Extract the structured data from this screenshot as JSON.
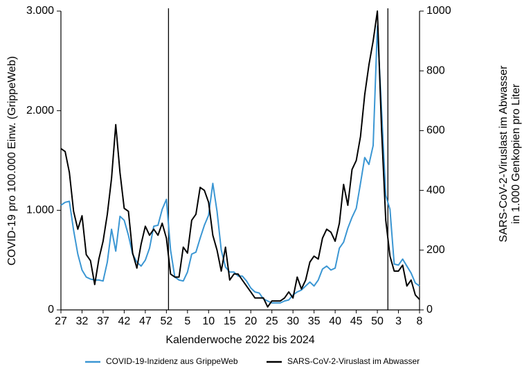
{
  "chart_data": {
    "type": "line",
    "x_label": "Kalenderwoche 2022 bis 2024",
    "y_label": "COVID-19 pro 100.000 Einw. (GrippeWeb)",
    "y2_label": [
      "SARS-CoV-2-Viruslast im Abwasser",
      "in 1.000 Genkopien pro Liter"
    ],
    "categories": [
      "27",
      null,
      null,
      null,
      null,
      "32",
      null,
      null,
      null,
      null,
      "37",
      null,
      null,
      null,
      null,
      "42",
      null,
      null,
      null,
      null,
      "47",
      null,
      null,
      null,
      null,
      "52",
      null,
      null,
      null,
      null,
      "5",
      null,
      null,
      null,
      null,
      "10",
      null,
      null,
      null,
      null,
      "15",
      null,
      null,
      null,
      null,
      "20",
      null,
      null,
      null,
      null,
      "25",
      null,
      null,
      null,
      null,
      "30",
      null,
      null,
      null,
      null,
      "35",
      null,
      null,
      null,
      null,
      "40",
      null,
      null,
      null,
      null,
      "45",
      null,
      null,
      null,
      null,
      "50",
      null,
      null,
      null,
      null,
      "3",
      null,
      null,
      null,
      null,
      "8"
    ],
    "ylim": [
      0,
      3000
    ],
    "yticks": [
      0,
      {
        "value": 1000,
        "label": "1.000"
      },
      {
        "value": 2000,
        "label": "2.000"
      },
      {
        "value": 3000,
        "label": "3.000"
      }
    ],
    "y2lim": [
      0,
      1000
    ],
    "y2ticks": [
      0,
      200,
      400,
      600,
      800,
      1000
    ],
    "legend": "bottom",
    "series": [
      {
        "name": "COVID-19-Inzidenz aus GrippeWeb",
        "color": "#3a96d3",
        "values": [
          1050,
          1080,
          1090,
          800,
          560,
          400,
          330,
          310,
          300,
          300,
          290,
          480,
          810,
          590,
          940,
          900,
          750,
          560,
          480,
          440,
          500,
          620,
          840,
          850,
          1010,
          1110,
          600,
          330,
          300,
          290,
          380,
          560,
          580,
          720,
          850,
          950,
          1270,
          990,
          600,
          430,
          380,
          380,
          340,
          340,
          290,
          220,
          180,
          170,
          110,
          90,
          70,
          70,
          70,
          90,
          100,
          150,
          180,
          200,
          240,
          280,
          240,
          300,
          410,
          440,
          400,
          420,
          620,
          680,
          820,
          930,
          1020,
          1270,
          1530,
          1460,
          1650,
          2850,
          2000,
          1150,
          1010,
          460,
          450,
          510,
          440,
          370,
          270,
          240
        ]
      },
      {
        "name": "SARS-CoV-2-Viruslast im Abwasser",
        "color": "#000000",
        "axis": "y2",
        "values": [
          540,
          530,
          460,
          330,
          270,
          315,
          185,
          165,
          85,
          170,
          230,
          320,
          440,
          620,
          460,
          340,
          330,
          190,
          140,
          220,
          280,
          250,
          270,
          250,
          290,
          240,
          120,
          110,
          110,
          210,
          190,
          300,
          320,
          410,
          400,
          360,
          250,
          200,
          130,
          210,
          100,
          120,
          120,
          100,
          80,
          60,
          40,
          40,
          40,
          10,
          30,
          30,
          30,
          40,
          60,
          40,
          110,
          70,
          100,
          160,
          180,
          170,
          240,
          270,
          260,
          230,
          290,
          420,
          350,
          470,
          500,
          580,
          720,
          820,
          900,
          1000,
          600,
          300,
          180,
          130,
          130,
          150,
          80,
          100,
          50,
          35
        ]
      }
    ]
  }
}
